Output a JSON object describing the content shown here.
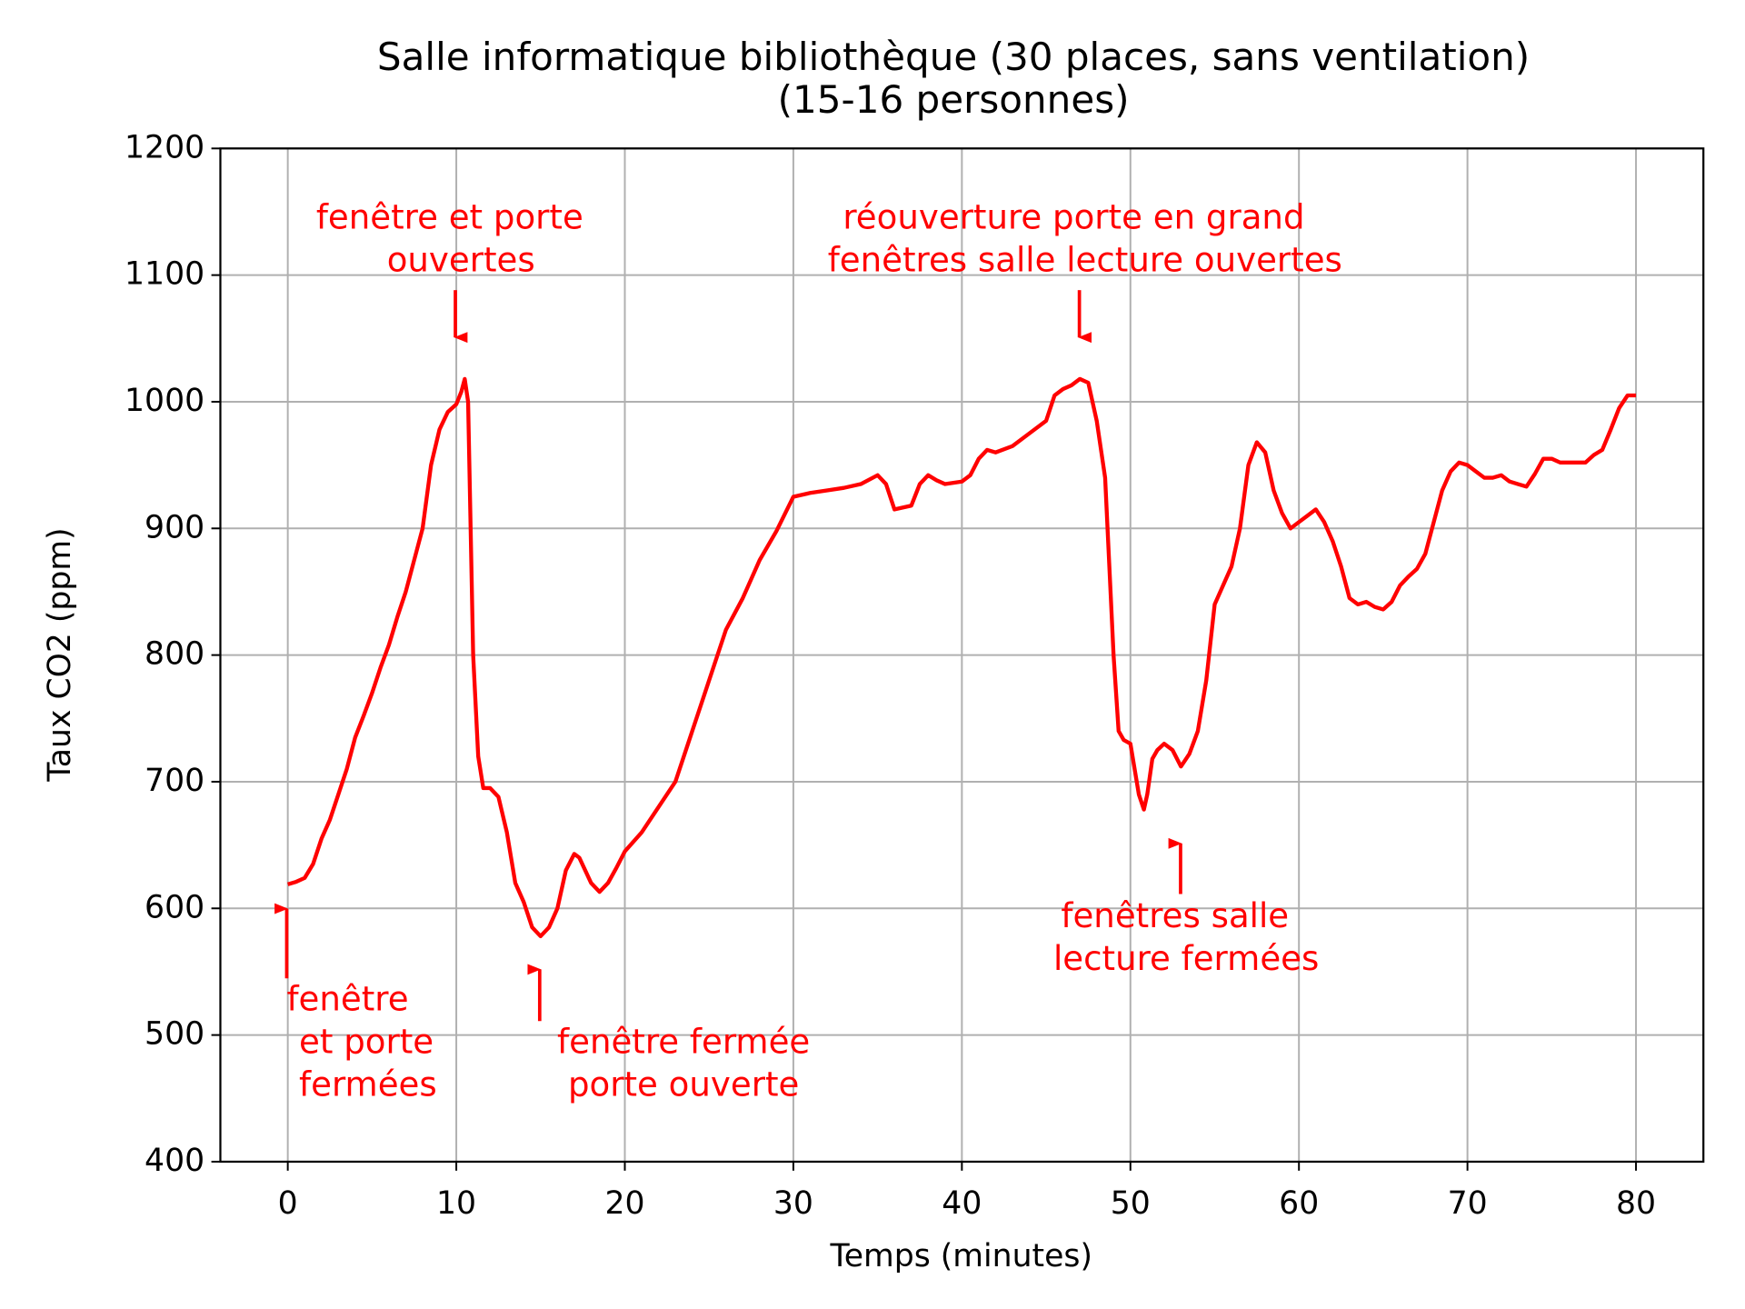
{
  "chart_data": {
    "type": "line",
    "title": [
      "Salle informatique bibliothèque (30 places, sans ventilation)",
      "(15-16 personnes)"
    ],
    "x_label": "Temps (minutes)",
    "y_label": "Taux CO2 (ppm)",
    "x": [
      0,
      0.5,
      1,
      1.5,
      2,
      2.5,
      3,
      3.5,
      4,
      4.5,
      5,
      5.5,
      6,
      6.5,
      7,
      7.5,
      8,
      8.5,
      9,
      9.5,
      10,
      10.3,
      10.5,
      10.7,
      11,
      11.3,
      11.6,
      12,
      12.5,
      13,
      13.5,
      14,
      14.5,
      15,
      15.5,
      16,
      16.5,
      17,
      17.3,
      18,
      18.5,
      19,
      19.5,
      20,
      21,
      22,
      23,
      24,
      25,
      26,
      27,
      28,
      29,
      30,
      31,
      32,
      33,
      34,
      35,
      35.5,
      36,
      37,
      37.5,
      38,
      38.5,
      39,
      40,
      40.5,
      41,
      41.5,
      42,
      43,
      44,
      45,
      45.5,
      46,
      46.5,
      47,
      47.5,
      48,
      48.5,
      49,
      49.3,
      49.6,
      50,
      50.5,
      50.8,
      51,
      51.3,
      51.6,
      52,
      52.5,
      53,
      53.5,
      54,
      54.5,
      55,
      55.5,
      56,
      56.5,
      57,
      57.5,
      58,
      58.5,
      59,
      59.5,
      60,
      60.5,
      61,
      61.5,
      62,
      62.5,
      63,
      63.5,
      64,
      64.5,
      65,
      65.5,
      66,
      66.5,
      67,
      67.5,
      68,
      68.5,
      69,
      69.5,
      70,
      70.5,
      71,
      71.5,
      72,
      72.5,
      73,
      73.5,
      74,
      74.5,
      75,
      75.5,
      76,
      77,
      77.5,
      78,
      78.5,
      79,
      79.5,
      80
    ],
    "series": [
      {
        "name": "CO2",
        "color": "#ff0000",
        "values": [
          619,
          621,
          624,
          635,
          655,
          670,
          690,
          710,
          735,
          752,
          770,
          790,
          808,
          830,
          850,
          875,
          900,
          950,
          978,
          992,
          998,
          1008,
          1018,
          1000,
          800,
          720,
          695,
          695,
          688,
          660,
          620,
          605,
          585,
          578,
          585,
          600,
          630,
          643,
          640,
          620,
          613,
          620,
          632,
          645,
          660,
          680,
          700,
          740,
          780,
          820,
          845,
          875,
          898,
          925,
          928,
          930,
          932,
          935,
          942,
          935,
          915,
          918,
          935,
          942,
          938,
          935,
          937,
          942,
          955,
          962,
          960,
          965,
          975,
          985,
          1005,
          1010,
          1013,
          1018,
          1015,
          985,
          940,
          800,
          740,
          733,
          730,
          690,
          678,
          690,
          718,
          725,
          730,
          725,
          712,
          722,
          740,
          780,
          840,
          855,
          870,
          900,
          950,
          968,
          960,
          930,
          912,
          900,
          905,
          910,
          915,
          905,
          890,
          870,
          845,
          840,
          842,
          838,
          836,
          842,
          855,
          862,
          868,
          880,
          905,
          930,
          945,
          952,
          950,
          945,
          940,
          940,
          942,
          937,
          935,
          933,
          943,
          955,
          955,
          952,
          952,
          952,
          958,
          962,
          978,
          995,
          1005,
          1005
        ]
      }
    ],
    "xlim": [
      -4,
      84
    ],
    "ylim": [
      400,
      1200
    ],
    "xticks": [
      0,
      10,
      20,
      30,
      40,
      50,
      60,
      70,
      80
    ],
    "yticks": [
      400,
      500,
      600,
      700,
      800,
      900,
      1000,
      1100,
      1200
    ],
    "grid": true,
    "annotations": [
      [
        "fenêtre et porte",
        "ouvertes"
      ],
      [
        "réouverture porte en grand",
        "fenêtres salle lecture ouvertes"
      ],
      [
        "fenêtre",
        "et porte",
        "fermées"
      ],
      [
        "fenêtre fermée",
        "porte ouverte"
      ],
      [
        "fenêtres salle",
        "lecture fermées"
      ]
    ]
  }
}
